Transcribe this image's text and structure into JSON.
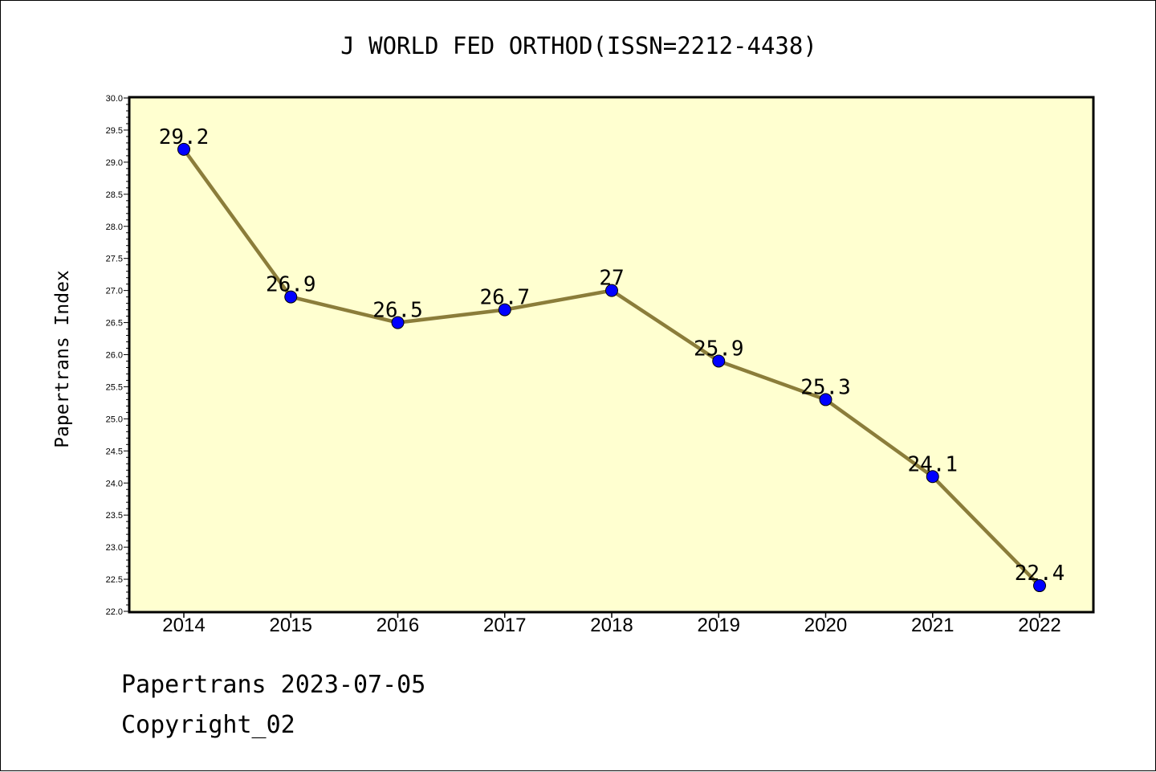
{
  "chart_data": {
    "type": "line",
    "title": "J WORLD FED ORTHOD(ISSN=2212-4438)",
    "xlabel": "",
    "ylabel": "Papertrans Index",
    "categories": [
      "2014",
      "2015",
      "2016",
      "2017",
      "2018",
      "2019",
      "2020",
      "2021",
      "2022"
    ],
    "series": [
      {
        "values": [
          29.2,
          26.9,
          26.5,
          26.7,
          27,
          25.9,
          25.3,
          24.1,
          22.4
        ],
        "data_labels": [
          "29.2",
          "26.9",
          "26.5",
          "26.7",
          "27",
          "25.9",
          "25.3",
          "24.1",
          "22.4"
        ],
        "line_color": "#8b7d3a",
        "marker_color": "#0000ff"
      }
    ],
    "ylim": [
      22.0,
      30.0
    ],
    "yticks": [
      "22.0",
      "22.5",
      "23.0",
      "23.5",
      "24.0",
      "24.5",
      "25.0",
      "25.5",
      "26.0",
      "26.5",
      "27.0",
      "27.5",
      "28.0",
      "28.5",
      "29.0",
      "29.5",
      "30.0"
    ],
    "plot_background": "#ffffd0",
    "grid": false,
    "legend": "none"
  },
  "footer": {
    "line1": "Papertrans 2023-07-05",
    "line2": "Copyright_02"
  }
}
